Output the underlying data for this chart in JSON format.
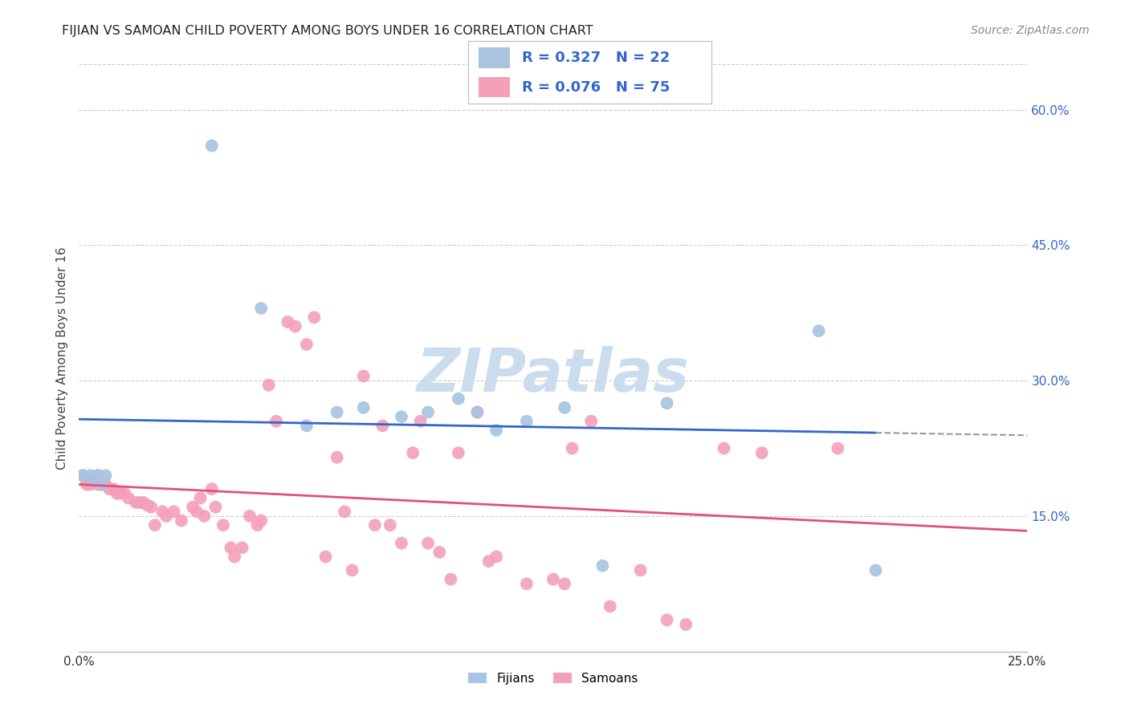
{
  "title": "FIJIAN VS SAMOAN CHILD POVERTY AMONG BOYS UNDER 16 CORRELATION CHART",
  "source": "Source: ZipAtlas.com",
  "ylabel": "Child Poverty Among Boys Under 16",
  "xlim": [
    0.0,
    0.25
  ],
  "ylim": [
    0.0,
    0.65
  ],
  "ytick_labels_right": [
    "60.0%",
    "45.0%",
    "30.0%",
    "15.0%"
  ],
  "ytick_vals_right": [
    0.6,
    0.45,
    0.3,
    0.15
  ],
  "fijian_color": "#a8c4e0",
  "samoan_color": "#f4a0b8",
  "fijian_line_color": "#3366cc",
  "samoan_line_color": "#e05080",
  "fijian_R": 0.327,
  "fijian_N": 22,
  "samoan_R": 0.076,
  "samoan_N": 75,
  "background_color": "#ffffff",
  "grid_color": "#cccccc",
  "watermark": "ZIPatlas",
  "watermark_color": "#ccdcef",
  "legend_text_color": "#3366cc",
  "fijians_x": [
    0.001,
    0.003,
    0.004,
    0.005,
    0.006,
    0.007,
    0.035,
    0.048,
    0.06,
    0.068,
    0.075,
    0.085,
    0.092,
    0.1,
    0.105,
    0.11,
    0.118,
    0.128,
    0.138,
    0.155,
    0.195,
    0.21
  ],
  "fijians_y": [
    0.195,
    0.195,
    0.19,
    0.195,
    0.185,
    0.195,
    0.56,
    0.38,
    0.25,
    0.265,
    0.27,
    0.26,
    0.265,
    0.28,
    0.265,
    0.245,
    0.255,
    0.27,
    0.095,
    0.275,
    0.355,
    0.09
  ],
  "samoans_x": [
    0.001,
    0.002,
    0.002,
    0.003,
    0.003,
    0.004,
    0.005,
    0.005,
    0.006,
    0.007,
    0.008,
    0.009,
    0.01,
    0.011,
    0.012,
    0.013,
    0.015,
    0.016,
    0.017,
    0.018,
    0.019,
    0.02,
    0.022,
    0.023,
    0.025,
    0.027,
    0.03,
    0.031,
    0.032,
    0.033,
    0.035,
    0.036,
    0.038,
    0.04,
    0.041,
    0.043,
    0.045,
    0.047,
    0.048,
    0.05,
    0.052,
    0.055,
    0.057,
    0.06,
    0.062,
    0.065,
    0.068,
    0.07,
    0.072,
    0.075,
    0.078,
    0.08,
    0.082,
    0.085,
    0.088,
    0.09,
    0.092,
    0.095,
    0.098,
    0.1,
    0.105,
    0.108,
    0.11,
    0.118,
    0.125,
    0.128,
    0.13,
    0.135,
    0.14,
    0.148,
    0.155,
    0.16,
    0.17,
    0.18,
    0.2
  ],
  "samoans_y": [
    0.195,
    0.19,
    0.185,
    0.185,
    0.19,
    0.19,
    0.195,
    0.185,
    0.185,
    0.185,
    0.18,
    0.18,
    0.175,
    0.175,
    0.175,
    0.17,
    0.165,
    0.165,
    0.165,
    0.162,
    0.16,
    0.14,
    0.155,
    0.15,
    0.155,
    0.145,
    0.16,
    0.155,
    0.17,
    0.15,
    0.18,
    0.16,
    0.14,
    0.115,
    0.105,
    0.115,
    0.15,
    0.14,
    0.145,
    0.295,
    0.255,
    0.365,
    0.36,
    0.34,
    0.37,
    0.105,
    0.215,
    0.155,
    0.09,
    0.305,
    0.14,
    0.25,
    0.14,
    0.12,
    0.22,
    0.255,
    0.12,
    0.11,
    0.08,
    0.22,
    0.265,
    0.1,
    0.105,
    0.075,
    0.08,
    0.075,
    0.225,
    0.255,
    0.05,
    0.09,
    0.035,
    0.03,
    0.225,
    0.22,
    0.225
  ]
}
